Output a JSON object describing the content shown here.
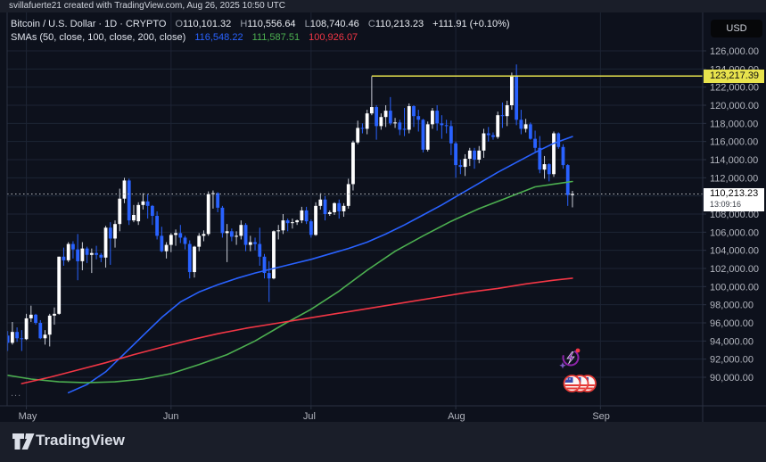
{
  "attribution": "svillafuerte21 created with TradingView.com, Aug 26, 2025 10:50 UTC",
  "footer": {
    "brand": "TradingView"
  },
  "toolbar": {
    "currency_label": "USD"
  },
  "more_ellipsis": "...",
  "legend": {
    "symbol_title": "Bitcoin / U.S. Dollar · 1D · CRYPTO",
    "ohlc": [
      {
        "k": "O",
        "v": "110,101.32"
      },
      {
        "k": "H",
        "v": "110,556.64"
      },
      {
        "k": "L",
        "v": "108,740.46"
      },
      {
        "k": "C",
        "v": "110,213.23"
      }
    ],
    "change": "+111.91 (+0.10%)",
    "sma_label": "SMAs (50, close, 100, close, 200, close)",
    "sma_values": [
      {
        "v": "116,548.22",
        "color": "#2962ff"
      },
      {
        "v": "111,587.51",
        "color": "#4caf50"
      },
      {
        "v": "100,926.07",
        "color": "#f23645"
      }
    ]
  },
  "colors": {
    "up_candle": "#ffffff",
    "down_candle": "#2962ff",
    "up_wick": "#c9cdd6",
    "sma50": "#2962ff",
    "sma100": "#4caf50",
    "sma200": "#f23645",
    "level_line": "#e8e34d",
    "grid": "#1d2434",
    "border": "#2a3142",
    "axis_text": "#b2b5be",
    "dotted_line": "#b8bcc2"
  },
  "chart_data": {
    "type": "candlestick",
    "title": "Bitcoin / U.S. Dollar",
    "timeframe": "1D",
    "exchange": "CRYPTO",
    "legend_position": "top-left",
    "grid": true,
    "y_axis": {
      "currency": "USD",
      "range": [
        88200,
        127700
      ],
      "labels": [
        "126,000.00",
        "124,000.00",
        "122,000.00",
        "120,000.00",
        "118,000.00",
        "116,000.00",
        "114,000.00",
        "112,000.00",
        "108,000.00",
        "106,000.00",
        "104,000.00",
        "102,000.00",
        "100,000.00",
        "98,000.00",
        "96,000.00",
        "94,000.00",
        "92,000.00",
        "90,000.00"
      ],
      "gridline_step": 2000
    },
    "x_axis": {
      "start_date": "2025-04-26",
      "months": [
        {
          "label": "May",
          "index": 5
        },
        {
          "label": "Jun",
          "index": 36
        },
        {
          "label": "Jul",
          "index": 66
        },
        {
          "label": "Aug",
          "index": 97
        },
        {
          "label": "Sep",
          "index": 128
        }
      ]
    },
    "current_price": {
      "value": 110213.23,
      "label": "110,213.23",
      "countdown": "13:09:16"
    },
    "level_line": {
      "price": 123217.39,
      "label": "123,217.39",
      "start_index": 79
    },
    "candles": [
      [
        94000,
        95000,
        93700,
        94600
      ],
      [
        94600,
        95100,
        92900,
        93800
      ],
      [
        93800,
        96100,
        93600,
        95000
      ],
      [
        95000,
        95500,
        93900,
        94300
      ],
      [
        94300,
        95200,
        92900,
        94200
      ],
      [
        94200,
        97000,
        94100,
        96500
      ],
      [
        96500,
        97900,
        96100,
        96900
      ],
      [
        96900,
        97000,
        95800,
        96000
      ],
      [
        96000,
        96300,
        94200,
        94300
      ],
      [
        94300,
        95200,
        93600,
        94700
      ],
      [
        94700,
        97000,
        93400,
        96800
      ],
      [
        96800,
        97700,
        95800,
        97000
      ],
      [
        97000,
        103300,
        96900,
        103300
      ],
      [
        103300,
        104300,
        102300,
        102900
      ],
      [
        102900,
        104900,
        102700,
        104700
      ],
      [
        104700,
        105000,
        103100,
        104100
      ],
      [
        104100,
        105800,
        100700,
        102800
      ],
      [
        102800,
        104900,
        101800,
        104200
      ],
      [
        104200,
        104400,
        102600,
        103500
      ],
      [
        103500,
        104200,
        101500,
        103700
      ],
      [
        103700,
        104500,
        103000,
        103500
      ],
      [
        103500,
        103700,
        102700,
        103200
      ],
      [
        103200,
        106700,
        102100,
        106500
      ],
      [
        106500,
        107100,
        102400,
        105300
      ],
      [
        105300,
        107300,
        104300,
        106900
      ],
      [
        106900,
        110800,
        106100,
        109700
      ],
      [
        109700,
        112000,
        109200,
        111700
      ],
      [
        111700,
        111900,
        106800,
        107300
      ],
      [
        107300,
        109000,
        107100,
        107900
      ],
      [
        107200,
        109300,
        106800,
        109000
      ],
      [
        109000,
        110300,
        108500,
        109400
      ],
      [
        109400,
        110200,
        107500,
        108900
      ],
      [
        108900,
        109000,
        106800,
        107800
      ],
      [
        107800,
        108300,
        105200,
        105600
      ],
      [
        105600,
        106600,
        103800,
        103900
      ],
      [
        103900,
        104900,
        103100,
        104600
      ],
      [
        104600,
        105900,
        103800,
        105700
      ],
      [
        105700,
        106300,
        104500,
        105900
      ],
      [
        105900,
        106800,
        104800,
        105400
      ],
      [
        105400,
        105600,
        104100,
        104700
      ],
      [
        104700,
        105100,
        100900,
        101600
      ],
      [
        101600,
        104500,
        101000,
        104400
      ],
      [
        104400,
        105900,
        103900,
        105600
      ],
      [
        105600,
        106200,
        105000,
        105800
      ],
      [
        105800,
        110500,
        105600,
        110200
      ],
      [
        110200,
        110600,
        108600,
        110300
      ],
      [
        110300,
        110400,
        108200,
        108700
      ],
      [
        108700,
        108900,
        105400,
        105900
      ],
      [
        105900,
        106900,
        102700,
        106100
      ],
      [
        106100,
        106400,
        105000,
        105500
      ],
      [
        105500,
        106100,
        104600,
        105600
      ],
      [
        105600,
        107300,
        105200,
        106800
      ],
      [
        106800,
        107000,
        103900,
        104600
      ],
      [
        104600,
        105600,
        103900,
        104900
      ],
      [
        104900,
        105400,
        104000,
        104700
      ],
      [
        104700,
        106500,
        102300,
        103300
      ],
      [
        103300,
        103600,
        100900,
        101500
      ],
      [
        101500,
        102800,
        98300,
        100900
      ],
      [
        100900,
        106200,
        100800,
        106100
      ],
      [
        106100,
        106800,
        105200,
        106200
      ],
      [
        106200,
        108000,
        105800,
        107300
      ],
      [
        107300,
        107500,
        106100,
        107000
      ],
      [
        107000,
        107500,
        106400,
        107100
      ],
      [
        107100,
        107400,
        106800,
        107300
      ],
      [
        107300,
        108800,
        107000,
        108400
      ],
      [
        108400,
        108800,
        106900,
        107200
      ],
      [
        107200,
        107400,
        105400,
        105700
      ],
      [
        105700,
        109300,
        105600,
        108900
      ],
      [
        108900,
        110300,
        108500,
        109600
      ],
      [
        109600,
        110000,
        107300,
        108000
      ],
      [
        108000,
        108400,
        107800,
        108200
      ],
      [
        108200,
        109300,
        107900,
        109200
      ],
      [
        109200,
        109600,
        107500,
        108300
      ],
      [
        108300,
        109200,
        107700,
        108900
      ],
      [
        108900,
        111900,
        108600,
        111300
      ],
      [
        111300,
        116100,
        110600,
        115900
      ],
      [
        115900,
        118300,
        115700,
        117500
      ],
      [
        117500,
        118000,
        116900,
        117400
      ],
      [
        117400,
        119500,
        116800,
        119100
      ],
      [
        119100,
        123200,
        118900,
        119800
      ],
      [
        119800,
        120000,
        116200,
        117700
      ],
      [
        117700,
        119100,
        117300,
        118700
      ],
      [
        118700,
        120000,
        117600,
        119400
      ],
      [
        119400,
        120900,
        117800,
        118000
      ],
      [
        118000,
        118600,
        117500,
        118100
      ],
      [
        118100,
        118400,
        116700,
        117300
      ],
      [
        117400,
        119700,
        116600,
        117300
      ],
      [
        117300,
        120200,
        116900,
        119900
      ],
      [
        119900,
        120000,
        117600,
        118800
      ],
      [
        118800,
        119500,
        117100,
        118400
      ],
      [
        118400,
        118500,
        114800,
        115100
      ],
      [
        115100,
        118200,
        114900,
        117900
      ],
      [
        117900,
        119700,
        117400,
        119400
      ],
      [
        119400,
        120000,
        117200,
        118000
      ],
      [
        118000,
        118900,
        116300,
        117800
      ],
      [
        117800,
        118400,
        116900,
        117700
      ],
      [
        117700,
        118300,
        114500,
        115800
      ],
      [
        115800,
        116000,
        112000,
        113400
      ],
      [
        113400,
        114000,
        112400,
        113200
      ],
      [
        113200,
        114600,
        112200,
        114100
      ],
      [
        114100,
        115300,
        113300,
        115000
      ],
      [
        115000,
        115300,
        113000,
        114000
      ],
      [
        114000,
        115500,
        113600,
        115000
      ],
      [
        115000,
        117400,
        114200,
        116900
      ],
      [
        116900,
        117600,
        116000,
        116700
      ],
      [
        116700,
        117000,
        116200,
        116500
      ],
      [
        116500,
        119300,
        116300,
        118900
      ],
      [
        118900,
        120300,
        117500,
        118800
      ],
      [
        118800,
        120500,
        117700,
        120000
      ],
      [
        120000,
        123600,
        119500,
        123300
      ],
      [
        123300,
        124500,
        117800,
        118400
      ],
      [
        118400,
        119500,
        116800,
        117400
      ],
      [
        117400,
        118500,
        117000,
        117900
      ],
      [
        117900,
        118100,
        116200,
        116300
      ],
      [
        116300,
        117200,
        114900,
        115300
      ],
      [
        115300,
        116600,
        112500,
        112900
      ],
      [
        112900,
        114400,
        111900,
        113500
      ],
      [
        113500,
        113600,
        111600,
        112400
      ],
      [
        112400,
        117100,
        112100,
        116900
      ],
      [
        116900,
        117000,
        115200,
        115400
      ],
      [
        115400,
        115700,
        113000,
        113400
      ],
      [
        113400,
        113500,
        108900,
        110100
      ],
      [
        110100,
        110556,
        108740,
        110213
      ]
    ],
    "series": [
      {
        "name": "SMA 50",
        "color": "#2962ff",
        "last_value": 116548.22,
        "points": [
          [
            14,
            88300
          ],
          [
            18,
            89200
          ],
          [
            22,
            90600
          ],
          [
            26,
            92600
          ],
          [
            30,
            94600
          ],
          [
            34,
            96600
          ],
          [
            38,
            98300
          ],
          [
            42,
            99400
          ],
          [
            46,
            100200
          ],
          [
            50,
            100900
          ],
          [
            54,
            101500
          ],
          [
            58,
            102000
          ],
          [
            62,
            102500
          ],
          [
            66,
            103000
          ],
          [
            70,
            103600
          ],
          [
            74,
            104200
          ],
          [
            78,
            104900
          ],
          [
            82,
            105800
          ],
          [
            86,
            106800
          ],
          [
            90,
            107900
          ],
          [
            94,
            109000
          ],
          [
            98,
            110200
          ],
          [
            102,
            111400
          ],
          [
            106,
            112600
          ],
          [
            110,
            113700
          ],
          [
            114,
            114800
          ],
          [
            118,
            115800
          ],
          [
            122,
            116548
          ]
        ]
      },
      {
        "name": "SMA 100",
        "color": "#4caf50",
        "last_value": 111587.51,
        "points": [
          [
            0,
            90300
          ],
          [
            6,
            89800
          ],
          [
            12,
            89500
          ],
          [
            18,
            89400
          ],
          [
            24,
            89500
          ],
          [
            30,
            89800
          ],
          [
            36,
            90400
          ],
          [
            42,
            91400
          ],
          [
            48,
            92500
          ],
          [
            54,
            94000
          ],
          [
            60,
            95800
          ],
          [
            66,
            97500
          ],
          [
            72,
            99500
          ],
          [
            78,
            101800
          ],
          [
            84,
            103900
          ],
          [
            90,
            105600
          ],
          [
            96,
            107200
          ],
          [
            102,
            108600
          ],
          [
            108,
            109800
          ],
          [
            114,
            111000
          ],
          [
            118,
            111300
          ],
          [
            122,
            111588
          ]
        ]
      },
      {
        "name": "SMA 200",
        "color": "#f23645",
        "last_value": 100926.07,
        "points": [
          [
            4,
            89300
          ],
          [
            10,
            90000
          ],
          [
            16,
            90800
          ],
          [
            22,
            91600
          ],
          [
            28,
            92500
          ],
          [
            34,
            93300
          ],
          [
            40,
            94100
          ],
          [
            46,
            94800
          ],
          [
            52,
            95400
          ],
          [
            58,
            95900
          ],
          [
            64,
            96400
          ],
          [
            70,
            96900
          ],
          [
            76,
            97400
          ],
          [
            82,
            97900
          ],
          [
            88,
            98400
          ],
          [
            94,
            98900
          ],
          [
            100,
            99400
          ],
          [
            106,
            99800
          ],
          [
            112,
            100300
          ],
          [
            118,
            100700
          ],
          [
            122,
            100926
          ]
        ]
      }
    ],
    "stickers": [
      {
        "name": "energy-sticker",
        "x": 641,
        "y": 399
      },
      {
        "name": "flag-coins-sticker",
        "x": 650,
        "y": 416
      }
    ]
  }
}
